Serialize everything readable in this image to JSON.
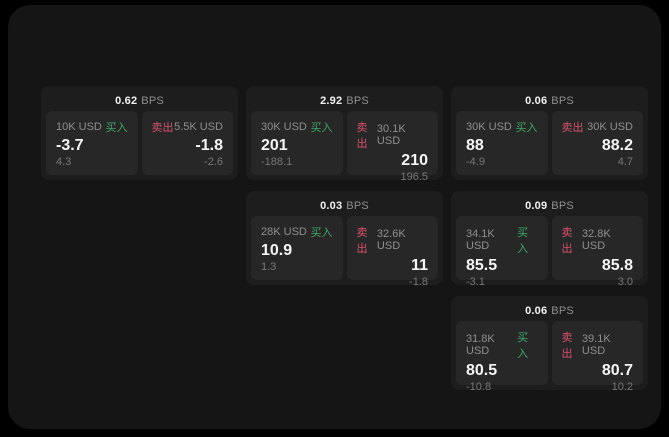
{
  "page": {
    "background": "#000000",
    "panel_background": "#151515"
  },
  "colors": {
    "card_background": "#1d1d1d",
    "tile_background": "#272727",
    "buy_green": "#3fa868",
    "sell_red": "#d9506d",
    "text_primary": "#f5f5f5",
    "text_secondary": "#8f8f8f",
    "text_tertiary": "#777777"
  },
  "labels": {
    "bps_unit": "BPS",
    "buy": "买入",
    "sell": "卖出"
  },
  "cards": [
    {
      "bps": "0.62",
      "buy": {
        "amount": "10K USD",
        "price": "-3.7",
        "delta": "4.3"
      },
      "sell": {
        "amount": "5.5K USD",
        "price": "-1.8",
        "delta": "-2.6"
      }
    },
    {
      "bps": "2.92",
      "buy": {
        "amount": "30K USD",
        "price": "201",
        "delta": "-188.1"
      },
      "sell": {
        "amount": "30.1K USD",
        "price": "210",
        "delta": "196.5"
      }
    },
    {
      "bps": "0.06",
      "buy": {
        "amount": "30K USD",
        "price": "88",
        "delta": "-4.9"
      },
      "sell": {
        "amount": "30K USD",
        "price": "88.2",
        "delta": "4.7"
      }
    },
    {
      "bps": "0.03",
      "buy": {
        "amount": "28K USD",
        "price": "10.9",
        "delta": "1.3"
      },
      "sell": {
        "amount": "32.6K USD",
        "price": "11",
        "delta": "-1.8"
      }
    },
    {
      "bps": "0.09",
      "buy": {
        "amount": "34.1K USD",
        "price": "85.5",
        "delta": "-3.1"
      },
      "sell": {
        "amount": "32.8K USD",
        "price": "85.8",
        "delta": "3.0"
      }
    },
    {
      "bps": "0.06",
      "buy": {
        "amount": "31.8K USD",
        "price": "80.5",
        "delta": "-10.8"
      },
      "sell": {
        "amount": "39.1K USD",
        "price": "80.7",
        "delta": "10.2"
      }
    }
  ]
}
